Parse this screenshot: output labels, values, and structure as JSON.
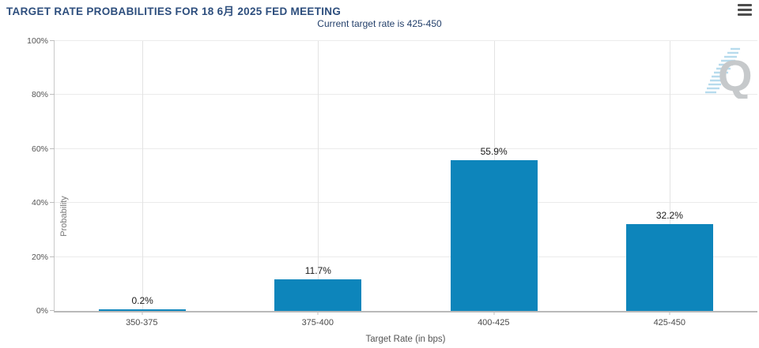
{
  "header": {
    "title": "TARGET RATE PROBABILITIES FOR 18 6月 2025 FED MEETING",
    "subtitle": "Current target rate is 425-450",
    "menu_icon": "hamburger-icon"
  },
  "chart_data": {
    "type": "bar",
    "title": "TARGET RATE PROBABILITIES FOR 18 6月 2025 FED MEETING",
    "subtitle": "Current target rate is 425-450",
    "categories": [
      "350-375",
      "375-400",
      "400-425",
      "425-450"
    ],
    "values": [
      0.2,
      11.7,
      55.9,
      32.2
    ],
    "value_labels": [
      "0.2%",
      "11.7%",
      "55.9%",
      "32.2%"
    ],
    "xlabel": "Target Rate (in bps)",
    "ylabel": "Probability",
    "ylim": [
      0,
      100
    ],
    "yticks": [
      "0%",
      "20%",
      "40%",
      "60%",
      "80%",
      "100%"
    ],
    "grid": true,
    "legend": "none",
    "bar_color": "#0d85bb"
  },
  "watermark": {
    "letter": "Q"
  },
  "colors": {
    "bar": "#0d85bb",
    "title": "#2d4e7d",
    "subtitle": "#24406b",
    "axis_text": "#555555",
    "gridline": "#ebebeb"
  }
}
